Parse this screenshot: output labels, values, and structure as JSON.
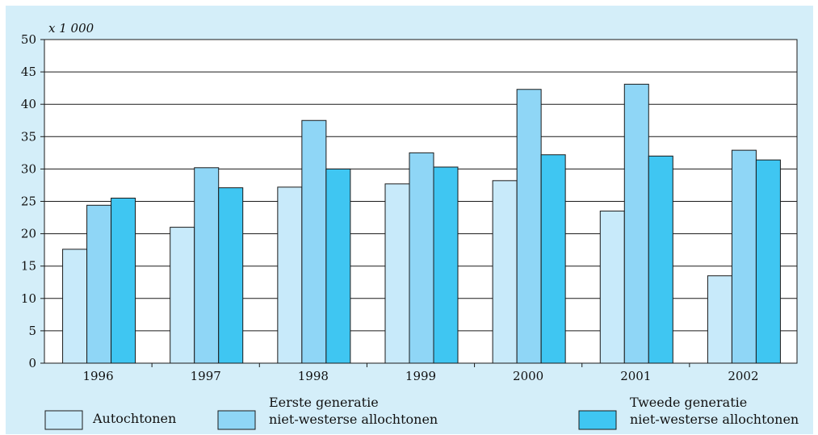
{
  "chart_data": {
    "type": "bar",
    "title": "",
    "xlabel": "",
    "ylabel": "",
    "unit_label": "x 1 000",
    "ylim": [
      0,
      50
    ],
    "yticks": [
      0,
      5,
      10,
      15,
      20,
      25,
      30,
      35,
      40,
      45,
      50
    ],
    "grid": true,
    "legend_position": "bottom",
    "categories": [
      "1996",
      "1997",
      "1998",
      "1999",
      "2000",
      "2001",
      "2002"
    ],
    "series": [
      {
        "name": "Autochtonen",
        "legend_lines": [
          "Autochtonen"
        ],
        "color": "#c8eafa",
        "values": [
          17.6,
          21.0,
          27.2,
          27.7,
          28.2,
          23.5,
          13.5
        ]
      },
      {
        "name": "Eerste generatie niet-westerse allochtonen",
        "legend_lines": [
          "Eerste generatie",
          "niet-westerse allochtonen"
        ],
        "color": "#8fd6f6",
        "values": [
          24.4,
          30.2,
          37.5,
          32.5,
          42.3,
          43.1,
          32.9
        ]
      },
      {
        "name": "Tweede generatie niet-westerse allochtonen",
        "legend_lines": [
          "Tweede generatie",
          "niet-westerse allochtonen"
        ],
        "color": "#3fc6f2",
        "values": [
          25.5,
          27.1,
          30.0,
          30.3,
          32.2,
          32.0,
          31.4
        ]
      }
    ]
  }
}
